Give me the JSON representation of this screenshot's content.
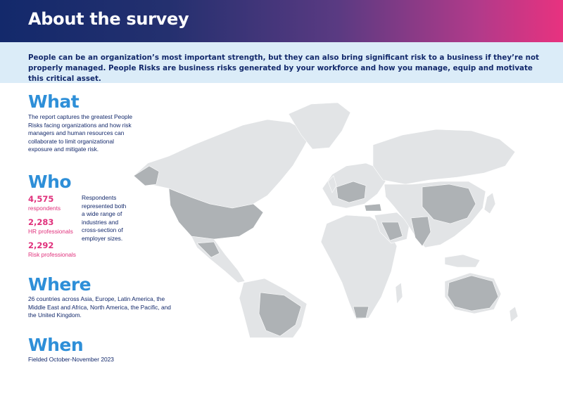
{
  "header": {
    "title": "About the survey"
  },
  "intro": {
    "text": "People can be an organization’s most important strength, but they can also bring significant risk to a business if they’re not properly managed. People Risks are business risks generated by your workforce and how you manage, equip and motivate this critical asset."
  },
  "what": {
    "heading": "What",
    "text": "The report captures the greatest People Risks facing organizations and how risk managers and human resources can collaborate to limit organizational exposure and mitigate risk."
  },
  "who": {
    "heading": "Who",
    "stats": [
      {
        "value": "4,575",
        "label": "respondents"
      },
      {
        "value": "2,283",
        "label": "HR professionals"
      },
      {
        "value": "2,292",
        "label": "Risk professionals"
      }
    ],
    "note": "Respondents represented both a wide range of industries and cross-section of employer sizes."
  },
  "where": {
    "heading": "Where",
    "text": "26 countries across Asia, Europe, Latin America, the Middle East and Africa, North America, the Pacific, and the United Kingdom."
  },
  "when": {
    "heading": "When",
    "text": "Fielded October-November 2023"
  },
  "colors": {
    "heading_blue": "#2e8fd8",
    "accent_pink": "#e0317c",
    "navy": "#13296b",
    "intro_bg": "#dbecf8",
    "map_light": "#e2e4e6",
    "map_dark": "#aeb2b5"
  }
}
